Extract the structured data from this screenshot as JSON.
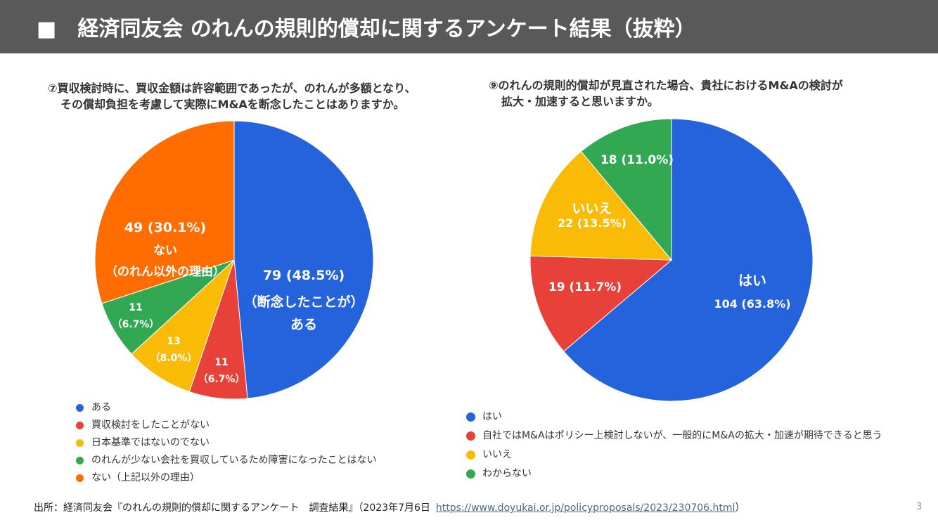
{
  "header": {
    "title": "■　経済同友会 のれんの規則的償却に関するアンケート結果（抜粋）"
  },
  "charts": {
    "c1": {
      "question_line1": "⑦買収検討時に、買収金額は許容範囲であったが、のれんが多額となり、",
      "question_line2": "その償却負担を考慮して実際にM&Aを断念したことはありますか。",
      "slice_labels": [
        [
          "79 (48.5%)",
          "（断念したことが）",
          "ある"
        ],
        [
          "11",
          "（6.7%）"
        ],
        [
          "13",
          "（8.0%）"
        ],
        [
          "11",
          "（6.7%）"
        ],
        [
          "49 (30.1%)",
          "ない",
          "（のれん以外の理由）"
        ]
      ],
      "legend": [
        "ある",
        "買収検討をしたことがない",
        "日本基準ではないのでない",
        "のれんが少ない会社を買収しているため障害になったことはない",
        "ない（上記以外の理由）"
      ]
    },
    "c2": {
      "question_line1": "⑨のれんの規則的償却が見直された場合、貴社におけるM&Aの検討が",
      "question_line2": "拡大・加速すると思いますか。",
      "slice_labels": [
        [
          "はい",
          "104 (63.8%)"
        ],
        [
          "19 (11.7%)"
        ],
        [
          "いいえ",
          "22 (13.5%)"
        ],
        [
          "18 (11.0%)"
        ]
      ],
      "legend": [
        "はい",
        "自社ではM&Aはポリシー上検討しないが、一般的にM&Aの拡大・加速が期待できると思う",
        "いいえ",
        "わからない"
      ]
    }
  },
  "chart_data": [
    {
      "type": "pie",
      "title": "⑦買収検討時に、買収金額は許容範囲であったが、のれんが多額となり、その償却負担を考慮して実際にM&Aを断念したことはありますか。",
      "categories": [
        "ある",
        "買収検討をしたことがない",
        "日本基準ではないのでない",
        "のれんが少ない会社を買収しているため障害になったことはない",
        "ない（上記以外の理由）"
      ],
      "values": [
        79,
        11,
        13,
        11,
        49
      ],
      "percents": [
        48.5,
        6.7,
        8.0,
        6.7,
        30.1
      ],
      "colors": [
        "#2563dc",
        "#e8413a",
        "#f9bb06",
        "#33a852",
        "#ff6d01"
      ],
      "legend_position": "bottom"
    },
    {
      "type": "pie",
      "title": "⑨のれんの規則的償却が見直された場合、貴社におけるM&Aの検討が拡大・加速すると思いますか。",
      "categories": [
        "はい",
        "自社ではM&Aはポリシー上検討しないが、一般的にM&Aの拡大・加速が期待できると思う",
        "いいえ",
        "わからない"
      ],
      "values": [
        104,
        19,
        22,
        18
      ],
      "percents": [
        63.8,
        11.7,
        13.5,
        11.0
      ],
      "colors": [
        "#2563dc",
        "#e8413a",
        "#f9bb06",
        "#33a852"
      ],
      "legend_position": "bottom"
    }
  ],
  "footer": {
    "source": "出所：経済同友会『のれんの規則的償却に関するアンケート　調査結果』（2023年7月6日",
    "url": "https://www.doyukai.or.jp/policyproposals/2023/230706.html",
    "close": "）"
  },
  "page_number": "3"
}
